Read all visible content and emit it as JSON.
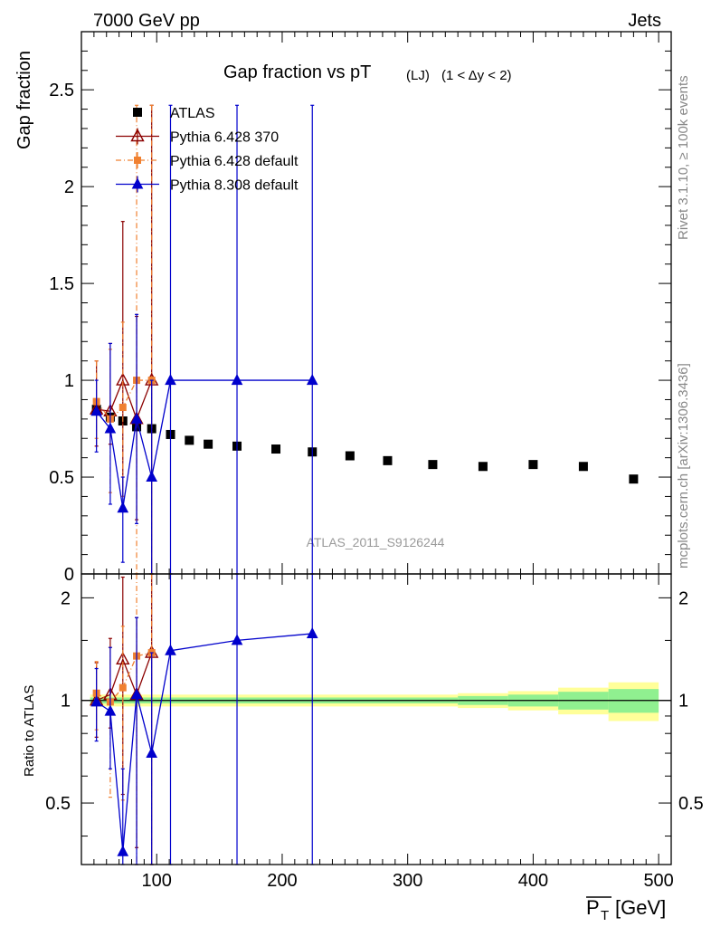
{
  "header": {
    "left_label": "7000 GeV pp",
    "right_label": "Jets"
  },
  "side_labels": {
    "rivet": "Rivet 3.1.10, ≥ 100k events",
    "mcplots": "mcplots.cern.ch [arXiv:1306.3436]"
  },
  "chart_data": {
    "type": "scatter",
    "title": "Gap fraction vs pT",
    "title_sub": "(LJ)",
    "title_cond": "(1 < Δy < 2)",
    "analysis_label": "ATLAS_2011_S9126244",
    "ylabel": "Gap fraction",
    "ratio_ylabel": "Ratio to ATLAS",
    "xlabel": "P_T [GeV]",
    "xlabel_main": "P",
    "xlabel_sub": "T",
    "xlabel_unit": "[GeV]",
    "xlim": [
      40,
      510
    ],
    "ylim": [
      0,
      2.8
    ],
    "ratio_ylim": [
      0.33,
      2.35
    ],
    "x_ticks": [
      100,
      200,
      300,
      400,
      500
    ],
    "y_ticks": [
      0,
      0.5,
      1,
      1.5,
      2,
      2.5
    ],
    "y_tick_labels": [
      "0",
      "0.5",
      "1",
      "1.5",
      "2",
      "2.5"
    ],
    "ratio_ticks": [
      0.5,
      1,
      2
    ],
    "ratio_tick_labels": [
      "0.5",
      "1",
      "2"
    ],
    "legend_position": "top-left",
    "series": [
      {
        "name": "ATLAS",
        "color": "#000000",
        "marker": "square",
        "points": [
          {
            "x": 52,
            "y": 0.85
          },
          {
            "x": 63,
            "y": 0.81
          },
          {
            "x": 73,
            "y": 0.79
          },
          {
            "x": 84,
            "y": 0.76
          },
          {
            "x": 96,
            "y": 0.75
          },
          {
            "x": 111,
            "y": 0.72
          },
          {
            "x": 126,
            "y": 0.69
          },
          {
            "x": 141,
            "y": 0.67
          },
          {
            "x": 164,
            "y": 0.66
          },
          {
            "x": 195,
            "y": 0.645
          },
          {
            "x": 224,
            "y": 0.63
          },
          {
            "x": 254,
            "y": 0.61
          },
          {
            "x": 284,
            "y": 0.585
          },
          {
            "x": 320,
            "y": 0.565
          },
          {
            "x": 360,
            "y": 0.555
          },
          {
            "x": 400,
            "y": 0.565
          },
          {
            "x": 440,
            "y": 0.555
          },
          {
            "x": 480,
            "y": 0.49
          }
        ]
      },
      {
        "name": "Pythia 6.428 370",
        "color": "#8b0000",
        "marker": "open-triangle",
        "dash": "",
        "points": [
          {
            "x": 52,
            "y": 0.85,
            "lo": 0.66,
            "hi": 1.1
          },
          {
            "x": 63,
            "y": 0.84,
            "lo": 0.67,
            "hi": 1.19
          },
          {
            "x": 73,
            "y": 1.0,
            "lo": 0.4,
            "hi": 1.82
          },
          {
            "x": 84,
            "y": 0.8,
            "lo": 0.28,
            "hi": 1.33
          },
          {
            "x": 96,
            "y": 1.0,
            "lo": 0.0,
            "hi": 2.42
          }
        ],
        "ratio": [
          {
            "x": 52,
            "y": 1.0,
            "lo": 0.78,
            "hi": 1.29
          },
          {
            "x": 63,
            "y": 1.04,
            "lo": 0.83,
            "hi": 1.52
          },
          {
            "x": 73,
            "y": 1.32,
            "lo": 0.53,
            "hi": 2.3
          },
          {
            "x": 84,
            "y": 1.04,
            "lo": 0.37,
            "hi": 1.75
          },
          {
            "x": 96,
            "y": 1.38,
            "lo": 0.3,
            "hi": 2.35
          }
        ]
      },
      {
        "name": "Pythia 6.428 default",
        "color": "#f08030",
        "marker": "filled-square-small",
        "dash": "6,3,1,3",
        "points": [
          {
            "x": 52,
            "y": 0.89,
            "lo": 0.7,
            "hi": 1.1
          },
          {
            "x": 63,
            "y": 0.8,
            "lo": 0.42,
            "hi": 1.16
          },
          {
            "x": 73,
            "y": 0.86,
            "lo": 0.4,
            "hi": 1.3
          },
          {
            "x": 84,
            "y": 1.0,
            "lo": 0.0,
            "hi": 2.42
          },
          {
            "x": 96,
            "y": 1.0,
            "lo": 0.0,
            "hi": 2.42
          }
        ],
        "ratio": [
          {
            "x": 52,
            "y": 1.05,
            "lo": 0.82,
            "hi": 1.3
          },
          {
            "x": 63,
            "y": 0.99,
            "lo": 0.52,
            "hi": 1.43
          },
          {
            "x": 73,
            "y": 1.09,
            "lo": 0.51,
            "hi": 1.65
          },
          {
            "x": 84,
            "y": 1.35,
            "lo": 0.3,
            "hi": 2.35
          },
          {
            "x": 96,
            "y": 1.38,
            "lo": 0.3,
            "hi": 2.35
          }
        ]
      },
      {
        "name": "Pythia 8.308 default",
        "color": "#0000cc",
        "marker": "filled-triangle",
        "dash": "",
        "points": [
          {
            "x": 52,
            "y": 0.84,
            "lo": 0.63,
            "hi": 1.0
          },
          {
            "x": 63,
            "y": 0.75,
            "lo": 0.36,
            "hi": 1.19
          },
          {
            "x": 73,
            "y": 0.34,
            "lo": 0.06,
            "hi": 0.5
          },
          {
            "x": 84,
            "y": 0.8,
            "lo": 0.26,
            "hi": 1.34
          },
          {
            "x": 96,
            "y": 0.5,
            "lo": 0.0,
            "hi": 1.0
          },
          {
            "x": 111,
            "y": 1.0,
            "lo": 0.0,
            "hi": 2.42
          },
          {
            "x": 164,
            "y": 1.0,
            "lo": 0.0,
            "hi": 2.42
          },
          {
            "x": 224,
            "y": 1.0,
            "lo": 0.0,
            "hi": 2.42
          }
        ],
        "ratio": [
          {
            "x": 52,
            "y": 0.99,
            "lo": 0.76,
            "hi": 1.24
          },
          {
            "x": 63,
            "y": 0.93,
            "lo": 0.63,
            "hi": 1.43
          },
          {
            "x": 73,
            "y": 0.36,
            "lo": 0.3,
            "hi": 0.63
          },
          {
            "x": 84,
            "y": 1.04,
            "lo": 0.33,
            "hi": 1.75
          },
          {
            "x": 96,
            "y": 0.7,
            "lo": 0.3,
            "hi": 1.38
          },
          {
            "x": 111,
            "y": 1.4,
            "lo": 0.3,
            "hi": 2.35
          },
          {
            "x": 164,
            "y": 1.5,
            "lo": 0.3,
            "hi": 2.35
          },
          {
            "x": 224,
            "y": 1.57,
            "lo": 0.3,
            "hi": 2.35
          }
        ]
      }
    ],
    "uncertainty_bands": {
      "inner_color": "#90f090",
      "outer_color": "#ffff99",
      "bins": [
        {
          "x0": 47,
          "x1": 340,
          "inner": 0.02,
          "outer": 0.04
        },
        {
          "x0": 340,
          "x1": 380,
          "inner": 0.03,
          "outer": 0.05
        },
        {
          "x0": 380,
          "x1": 420,
          "inner": 0.04,
          "outer": 0.065
        },
        {
          "x0": 420,
          "x1": 460,
          "inner": 0.06,
          "outer": 0.09
        },
        {
          "x0": 460,
          "x1": 500,
          "inner": 0.08,
          "outer": 0.13
        }
      ]
    }
  }
}
